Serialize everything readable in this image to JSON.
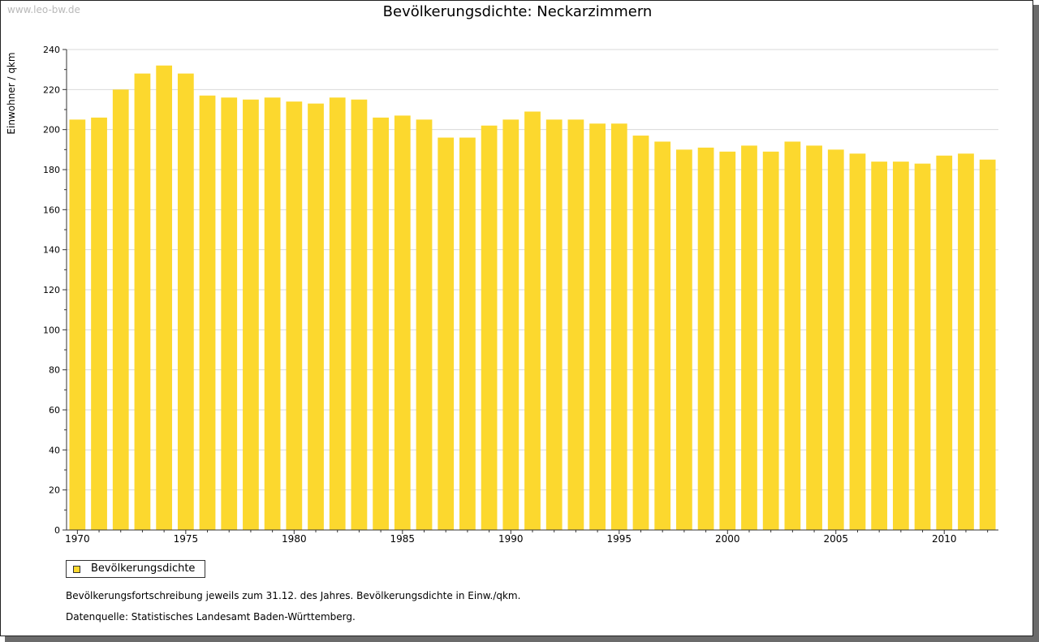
{
  "watermark": "www.leo-bw.de",
  "notes": {
    "line1": "Bevölkerungsfortschreibung jeweils zum 31.12. des Jahres. Bevölkerungsdichte in Einw./qkm.",
    "line2": "Datenquelle: Statistisches Landesamt Baden-Württemberg."
  },
  "colors": {
    "bar": "#fcd82e",
    "grid": "#d9d9d9",
    "axis": "#333333"
  },
  "chart_data": {
    "type": "bar",
    "title": "Bevölkerungsdichte: Neckarzimmern",
    "xlabel": "",
    "ylabel": "Einwohner / qkm",
    "ylim": [
      0,
      240
    ],
    "yticks": [
      0,
      20,
      40,
      60,
      80,
      100,
      120,
      140,
      160,
      180,
      200,
      220,
      240
    ],
    "xtick_labels": [
      "1970",
      "1975",
      "1980",
      "1985",
      "1990",
      "1995",
      "2000",
      "2005",
      "2010"
    ],
    "grid": true,
    "legend_position": "bottom-left",
    "categories": [
      1970,
      1971,
      1972,
      1973,
      1974,
      1975,
      1976,
      1977,
      1978,
      1979,
      1980,
      1981,
      1982,
      1983,
      1984,
      1985,
      1986,
      1987,
      1988,
      1989,
      1990,
      1991,
      1992,
      1993,
      1994,
      1995,
      1996,
      1997,
      1998,
      1999,
      2000,
      2001,
      2002,
      2003,
      2004,
      2005,
      2006,
      2007,
      2008,
      2009,
      2010,
      2011,
      2012
    ],
    "series": [
      {
        "name": "Bevölkerungsdichte",
        "values": [
          205,
          206,
          220,
          228,
          232,
          228,
          217,
          216,
          215,
          216,
          214,
          213,
          216,
          215,
          206,
          207,
          205,
          196,
          196,
          202,
          205,
          209,
          205,
          205,
          203,
          203,
          197,
          194,
          190,
          191,
          189,
          192,
          189,
          194,
          192,
          190,
          188,
          184,
          184,
          183,
          187,
          188,
          185
        ]
      }
    ]
  }
}
